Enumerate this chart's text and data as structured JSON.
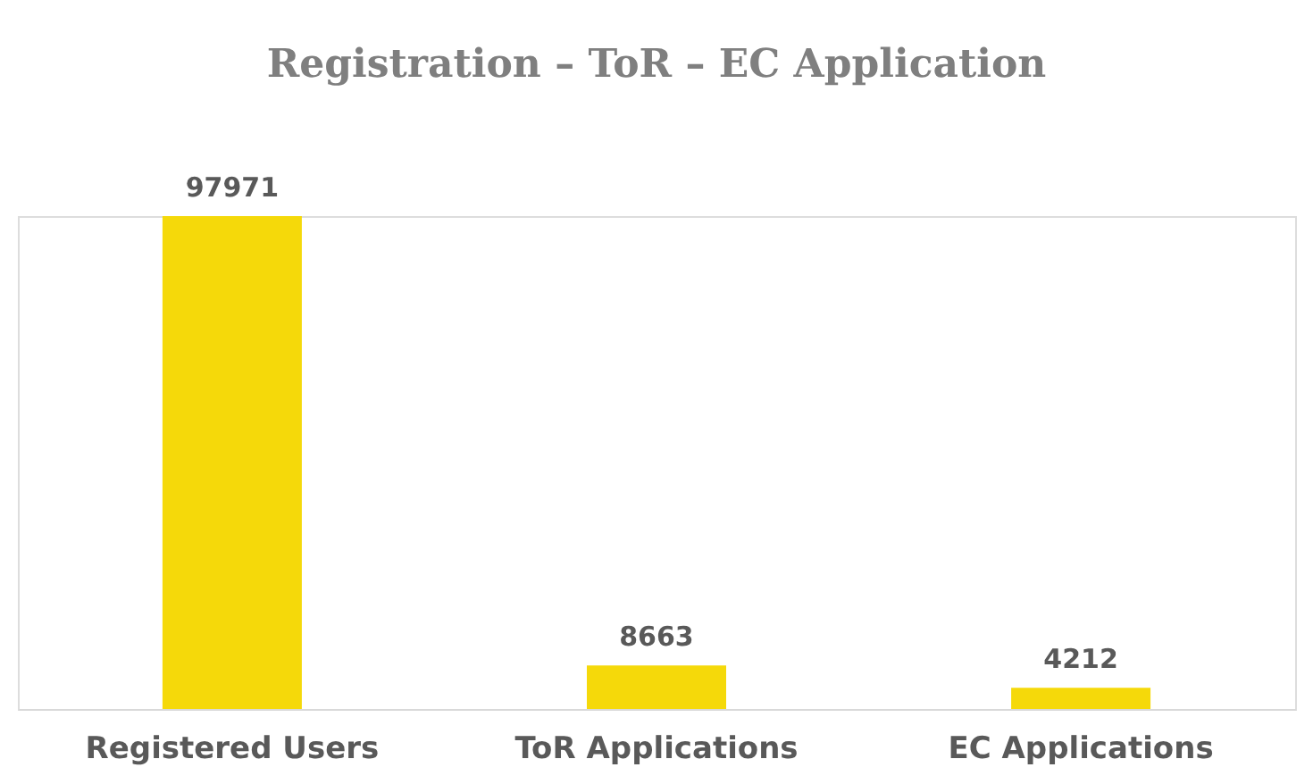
{
  "chart_data": {
    "type": "bar",
    "title": "Registration – ToR – EC Application",
    "categories": [
      "Registered Users",
      "ToR Applications",
      "EC Applications"
    ],
    "values": [
      97971,
      8663,
      4212
    ],
    "color": "#f5d90a",
    "data_labels": true
  }
}
